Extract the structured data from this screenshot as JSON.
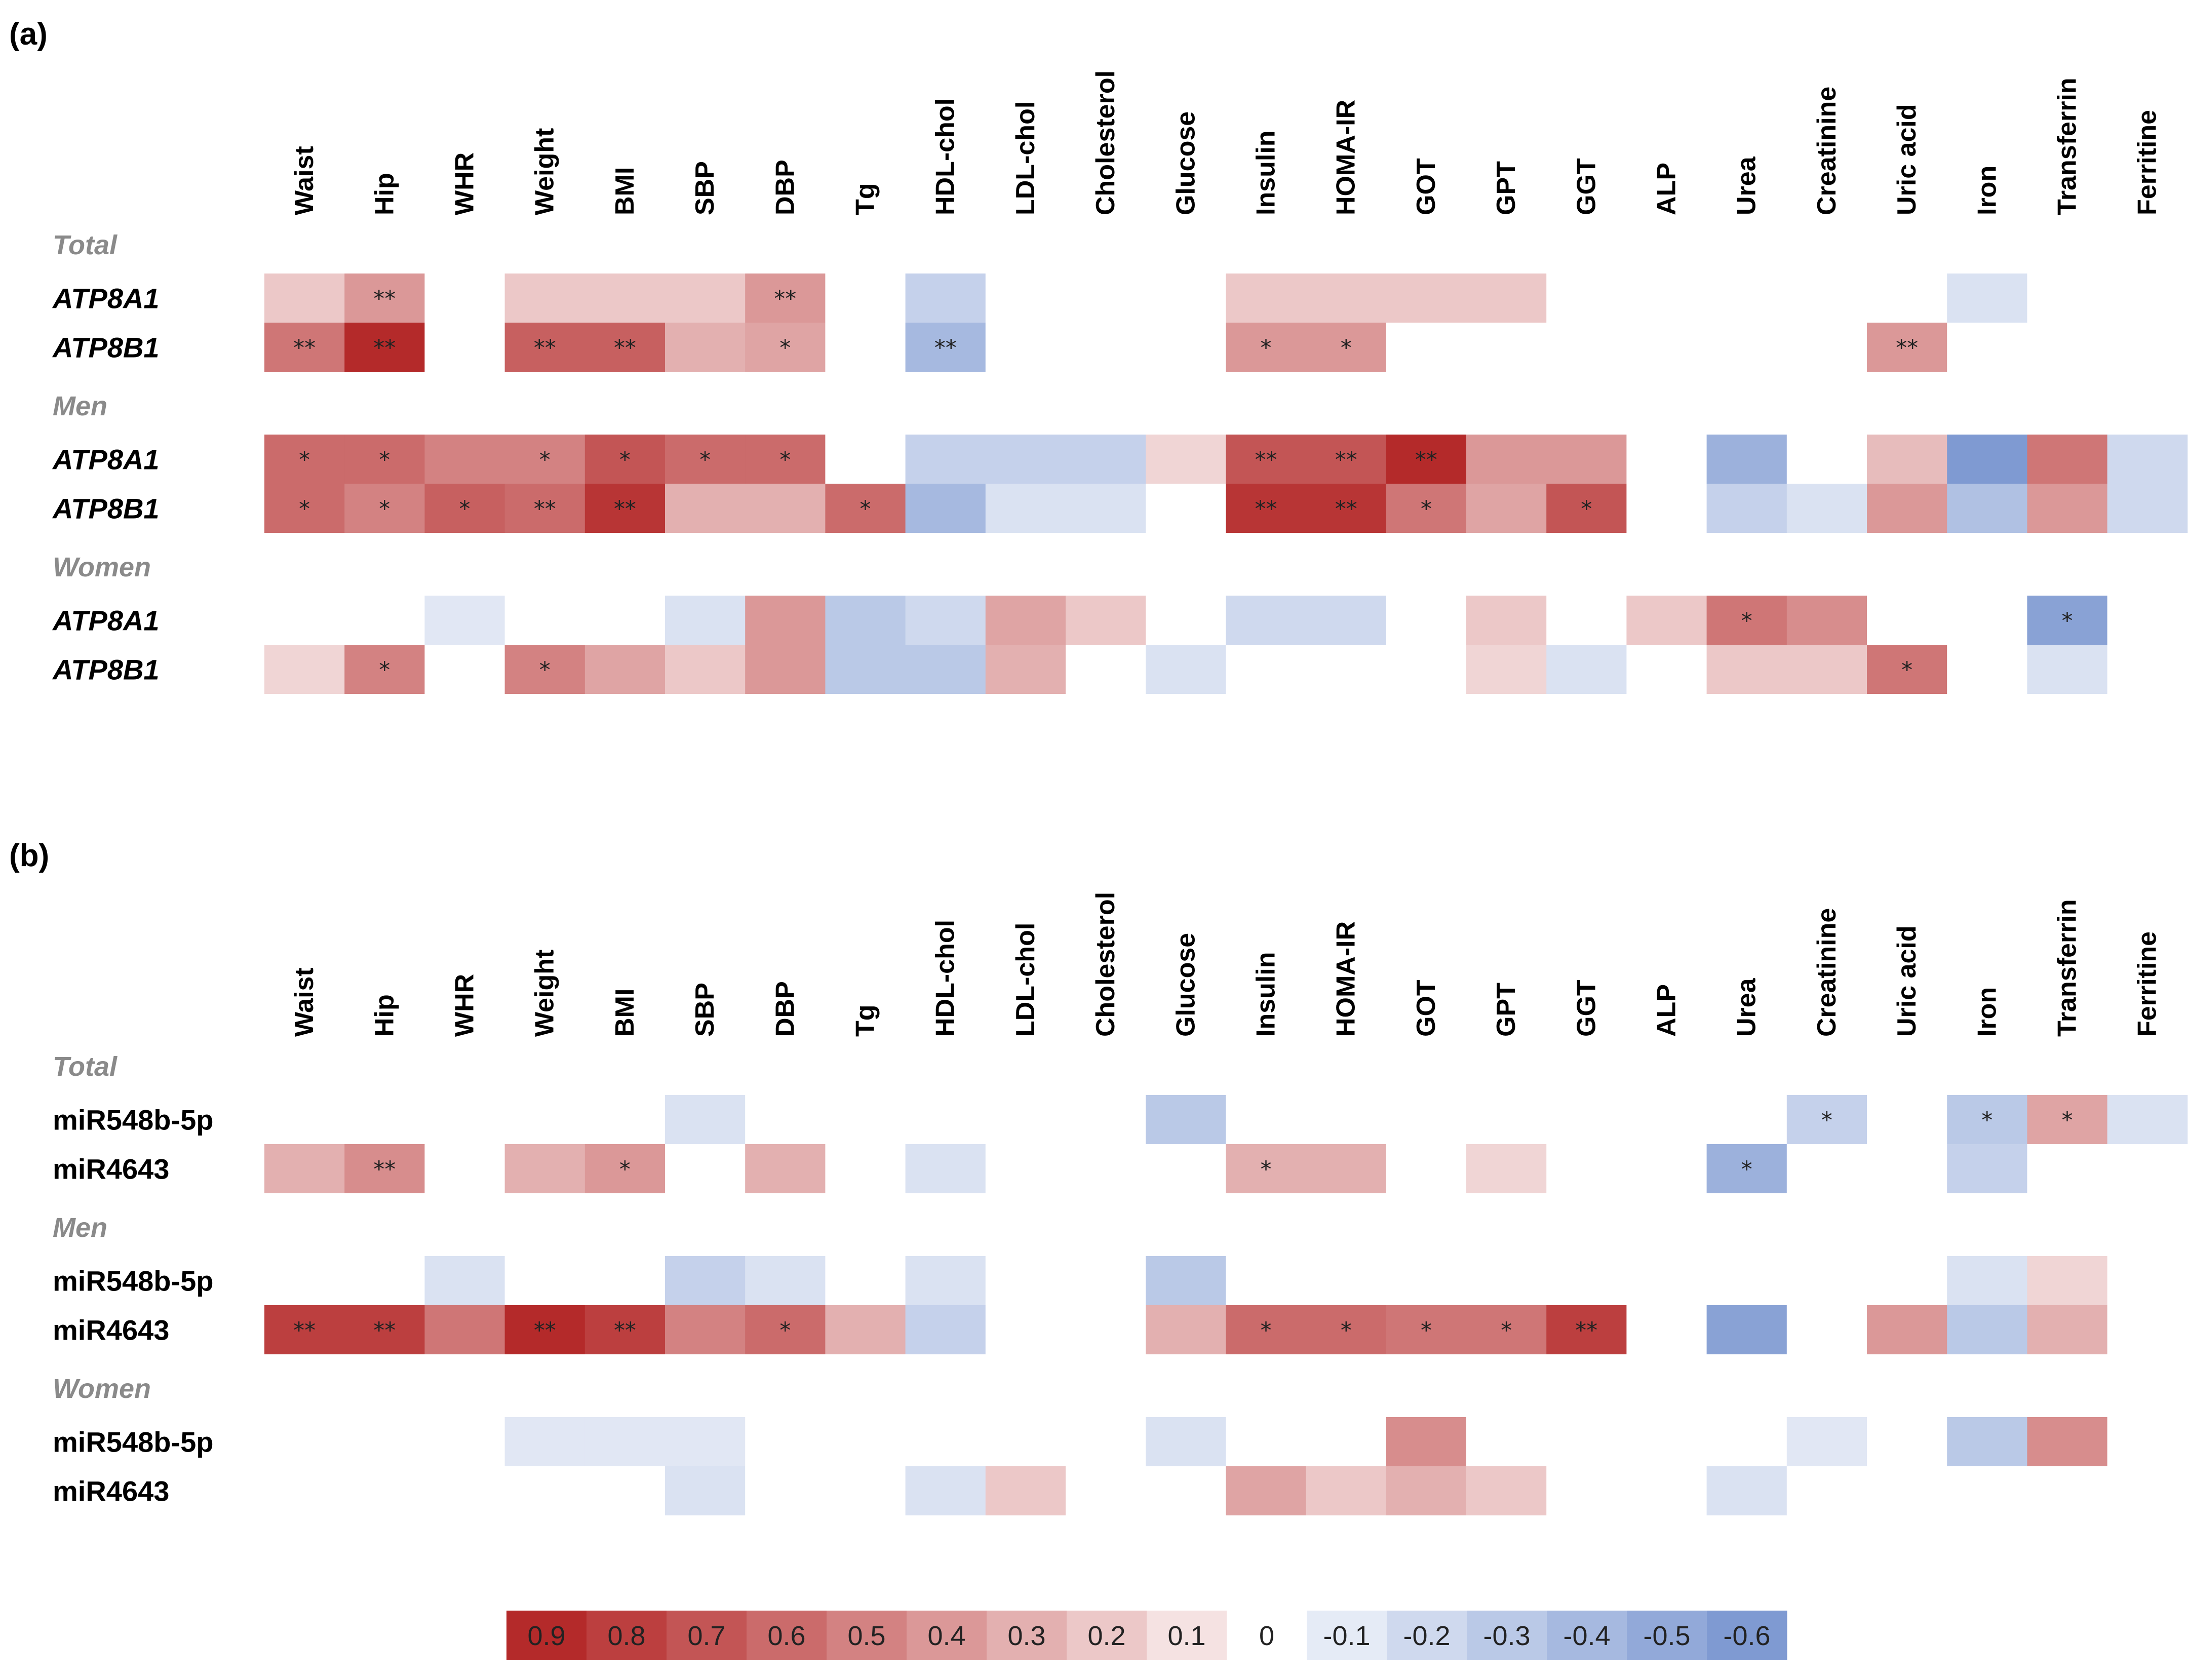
{
  "colors": {
    "pos_max": "#b42a2a",
    "neutral": "#ffffff",
    "neg_max": "#7f9ad2"
  },
  "chart_data": {
    "type": "heatmap",
    "columns": [
      "Waist",
      "Hip",
      "WHR",
      "Weight",
      "BMI",
      "SBP",
      "DBP",
      "Tg",
      "HDL-chol",
      "LDL-chol",
      "Cholesterol",
      "Glucose",
      "Insulin",
      "HOMA-IR",
      "GOT",
      "GPT",
      "GGT",
      "ALP",
      "Urea",
      "Creatinine",
      "Uric acid",
      "Iron",
      "Transferrin",
      "Ferritine"
    ],
    "legend": {
      "values": [
        0.9,
        0.8,
        0.7,
        0.6,
        0.5,
        0.4,
        0.3,
        0.2,
        0.1,
        0,
        -0.1,
        -0.2,
        -0.3,
        -0.4,
        -0.5,
        -0.6
      ],
      "labels": [
        "0.9",
        "0.8",
        "0.7",
        "0.6",
        "0.5",
        "0.4",
        "0.3",
        "0.2",
        "0.1",
        "0",
        "-0.1",
        "-0.2",
        "-0.3",
        "-0.4",
        "-0.5",
        "-0.6"
      ]
    },
    "panels": [
      {
        "label": "(a)",
        "italic_rows": true,
        "groups": [
          {
            "name": "Total",
            "rows": [
              {
                "name": "ATP8A1",
                "values": [
                  0.2,
                  0.4,
                  0,
                  0.2,
                  0.2,
                  0.2,
                  0.4,
                  0,
                  -0.25,
                  0,
                  0,
                  0,
                  0.2,
                  0.2,
                  0.2,
                  0.2,
                  0,
                  0,
                  0,
                  0,
                  0,
                  -0.15,
                  0,
                  0
                ],
                "stars": [
                  "",
                  "**",
                  "",
                  "",
                  "",
                  "",
                  "**",
                  "",
                  "",
                  "",
                  "",
                  "",
                  "",
                  "",
                  "",
                  "",
                  "",
                  "",
                  "",
                  "",
                  "",
                  "",
                  "",
                  ""
                ]
              },
              {
                "name": "ATP8B1",
                "values": [
                  0.55,
                  0.9,
                  0,
                  0.65,
                  0.65,
                  0.3,
                  0.35,
                  0,
                  -0.4,
                  0,
                  0,
                  0,
                  0.4,
                  0.4,
                  0,
                  0,
                  0,
                  0,
                  0,
                  0,
                  0.4,
                  0,
                  0,
                  0
                ],
                "stars": [
                  "**",
                  "**",
                  "",
                  "**",
                  "**",
                  "",
                  "*",
                  "",
                  "**",
                  "",
                  "",
                  "",
                  "*",
                  "*",
                  "",
                  "",
                  "",
                  "",
                  "",
                  "",
                  "**",
                  "",
                  "",
                  ""
                ]
              }
            ]
          },
          {
            "name": "Men",
            "rows": [
              {
                "name": "ATP8A1",
                "values": [
                  0.6,
                  0.6,
                  0.5,
                  0.5,
                  0.7,
                  0.6,
                  0.6,
                  0,
                  -0.25,
                  -0.25,
                  -0.25,
                  0.15,
                  0.7,
                  0.7,
                  0.9,
                  0.4,
                  0.4,
                  0,
                  -0.45,
                  0,
                  0.25,
                  -0.6,
                  0.55,
                  -0.2
                ],
                "stars": [
                  "*",
                  "*",
                  "",
                  "*",
                  "*",
                  "*",
                  "*",
                  "",
                  "",
                  "",
                  "",
                  "",
                  "**",
                  "**",
                  "**",
                  "",
                  "",
                  "",
                  "",
                  "",
                  "",
                  "",
                  "",
                  ""
                ]
              },
              {
                "name": "ATP8B1",
                "values": [
                  0.6,
                  0.5,
                  0.65,
                  0.6,
                  0.85,
                  0.3,
                  0.3,
                  0.6,
                  -0.4,
                  -0.15,
                  -0.15,
                  0,
                  0.85,
                  0.85,
                  0.55,
                  0.35,
                  0.7,
                  0,
                  -0.25,
                  -0.15,
                  0.4,
                  -0.35,
                  0.4,
                  -0.2
                ],
                "stars": [
                  "*",
                  "*",
                  "*",
                  "**",
                  "**",
                  "",
                  "",
                  "*",
                  "",
                  "",
                  "",
                  "",
                  "**",
                  "**",
                  "*",
                  "",
                  "*",
                  "",
                  "",
                  "",
                  "",
                  "",
                  "",
                  ""
                ]
              }
            ]
          },
          {
            "name": "Women",
            "rows": [
              {
                "name": "ATP8A1",
                "values": [
                  0,
                  0,
                  -0.12,
                  0,
                  0,
                  -0.15,
                  0.4,
                  -0.3,
                  -0.2,
                  0.35,
                  0.2,
                  0,
                  -0.2,
                  -0.2,
                  0,
                  0.2,
                  0,
                  0.2,
                  0.55,
                  0.45,
                  0,
                  0,
                  -0.55,
                  0
                ],
                "stars": [
                  "",
                  "",
                  "",
                  "",
                  "",
                  "",
                  "",
                  "",
                  "",
                  "",
                  "",
                  "",
                  "",
                  "",
                  "",
                  "",
                  "",
                  "",
                  "*",
                  "",
                  "",
                  "",
                  "*",
                  ""
                ]
              },
              {
                "name": "ATP8B1",
                "values": [
                  0.15,
                  0.5,
                  0,
                  0.5,
                  0.35,
                  0.2,
                  0.4,
                  -0.3,
                  -0.3,
                  0.3,
                  0,
                  -0.15,
                  0,
                  0,
                  0,
                  0.15,
                  -0.15,
                  0,
                  0.2,
                  0.2,
                  0.55,
                  0,
                  -0.15,
                  0
                ],
                "stars": [
                  "",
                  "*",
                  "",
                  "*",
                  "",
                  "",
                  "",
                  "",
                  "",
                  "",
                  "",
                  "",
                  "",
                  "",
                  "",
                  "",
                  "",
                  "",
                  "",
                  "",
                  "*",
                  "",
                  "",
                  ""
                ]
              }
            ]
          }
        ]
      },
      {
        "label": "(b)",
        "italic_rows": false,
        "groups": [
          {
            "name": "Total",
            "rows": [
              {
                "name": "miR548b-5p",
                "values": [
                  0,
                  0,
                  0,
                  0,
                  0,
                  -0.15,
                  0,
                  0,
                  0,
                  0,
                  0,
                  -0.3,
                  0,
                  0,
                  0,
                  0,
                  0,
                  0,
                  0,
                  -0.25,
                  0,
                  -0.3,
                  0.35,
                  -0.15
                ],
                "stars": [
                  "",
                  "",
                  "",
                  "",
                  "",
                  "",
                  "",
                  "",
                  "",
                  "",
                  "",
                  "",
                  "",
                  "",
                  "",
                  "",
                  "",
                  "",
                  "",
                  "*",
                  "",
                  "*",
                  "*",
                  ""
                ]
              },
              {
                "name": "miR4643",
                "values": [
                  0.3,
                  0.45,
                  0,
                  0.3,
                  0.4,
                  0,
                  0.3,
                  0,
                  -0.15,
                  0,
                  0,
                  0,
                  0.3,
                  0.3,
                  0,
                  0.15,
                  0,
                  0,
                  -0.45,
                  0,
                  0,
                  -0.25,
                  0,
                  0
                ],
                "stars": [
                  "",
                  "**",
                  "",
                  "",
                  "*",
                  "",
                  "",
                  "",
                  "",
                  "",
                  "",
                  "",
                  "*",
                  "",
                  "",
                  "",
                  "",
                  "",
                  "*",
                  "",
                  "",
                  "",
                  "",
                  ""
                ]
              }
            ]
          },
          {
            "name": "Men",
            "rows": [
              {
                "name": "miR548b-5p",
                "values": [
                  0,
                  0,
                  -0.15,
                  0,
                  0,
                  -0.25,
                  -0.15,
                  0,
                  -0.15,
                  0,
                  0,
                  -0.3,
                  0,
                  0,
                  0,
                  0,
                  0,
                  0,
                  0,
                  0,
                  0,
                  -0.15,
                  0.15,
                  0
                ],
                "stars": [
                  "",
                  "",
                  "",
                  "",
                  "",
                  "",
                  "",
                  "",
                  "",
                  "",
                  "",
                  "",
                  "",
                  "",
                  "",
                  "",
                  "",
                  "",
                  "",
                  "",
                  "",
                  "",
                  "",
                  ""
                ]
              },
              {
                "name": "miR4643",
                "values": [
                  0.8,
                  0.8,
                  0.55,
                  0.9,
                  0.8,
                  0.5,
                  0.6,
                  0.3,
                  -0.25,
                  0,
                  0,
                  0.3,
                  0.6,
                  0.6,
                  0.55,
                  0.55,
                  0.8,
                  0,
                  -0.55,
                  0,
                  0.4,
                  -0.3,
                  0.3,
                  0
                ],
                "stars": [
                  "**",
                  "**",
                  "",
                  "**",
                  "**",
                  "",
                  "*",
                  "",
                  "",
                  "",
                  "",
                  "",
                  "*",
                  "*",
                  "*",
                  "*",
                  "**",
                  "",
                  "",
                  "",
                  "",
                  "",
                  "",
                  ""
                ]
              }
            ]
          },
          {
            "name": "Women",
            "rows": [
              {
                "name": "miR548b-5p",
                "values": [
                  0,
                  0,
                  0,
                  -0.12,
                  -0.12,
                  -0.12,
                  0,
                  0,
                  0,
                  0,
                  0,
                  -0.15,
                  0,
                  0,
                  0.45,
                  0,
                  0,
                  0,
                  0,
                  -0.12,
                  0,
                  -0.3,
                  0.45,
                  0
                ],
                "stars": [
                  "",
                  "",
                  "",
                  "",
                  "",
                  "",
                  "",
                  "",
                  "",
                  "",
                  "",
                  "",
                  "",
                  "",
                  "",
                  "",
                  "",
                  "",
                  "",
                  "",
                  "",
                  "",
                  "",
                  ""
                ]
              },
              {
                "name": "miR4643",
                "values": [
                  0,
                  0,
                  0,
                  0,
                  0,
                  -0.15,
                  0,
                  0,
                  -0.15,
                  0.2,
                  0,
                  0,
                  0.35,
                  0.2,
                  0.3,
                  0.2,
                  0,
                  0,
                  -0.15,
                  0,
                  0,
                  0,
                  0,
                  0
                ],
                "stars": [
                  "",
                  "",
                  "",
                  "",
                  "",
                  "",
                  "",
                  "",
                  "",
                  "",
                  "",
                  "",
                  "",
                  "",
                  "",
                  "",
                  "",
                  "",
                  "",
                  "",
                  "",
                  "",
                  "",
                  ""
                ]
              }
            ]
          }
        ]
      }
    ]
  }
}
